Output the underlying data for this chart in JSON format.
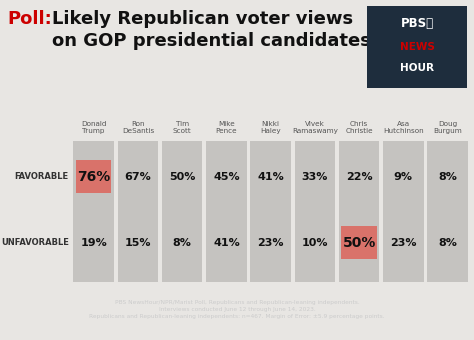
{
  "title_poll": "Poll:  ",
  "title_main": "Likely Republican voter views\non GOP presidential candidates",
  "candidates": [
    "Donald\nTrump",
    "Ron\nDeSantis",
    "Tim\nScott",
    "Mike\nPence",
    "Nikki\nHaley",
    "Vivek\nRamaswamy",
    "Chris\nChristie",
    "Asa\nHutchinson",
    "Doug\nBurgum"
  ],
  "favorable": [
    76,
    67,
    50,
    45,
    41,
    33,
    22,
    9,
    8
  ],
  "unfavorable": [
    19,
    15,
    8,
    41,
    23,
    10,
    50,
    23,
    8
  ],
  "highlight_favorable": [
    0
  ],
  "highlight_unfavorable": [
    6
  ],
  "bg_color": "#e8e6e3",
  "col_bg": "#c5c3c0",
  "highlight_color": "#d9726a",
  "text_color": "#111111",
  "label_favorable": "FAVORABLE",
  "label_unfavorable": "UNFAVORABLE",
  "footer_text": "PBS NewsHour/NPR/Marist Poll, Republicans and Republican-leaning independents.\nInterviews conducted June 12 through June 14, 2023.\nRepublicans and Republican-leaning independents: n=467. Margin of Error: ±5.9 percentage points.",
  "footer_bg": "#1e2d3d",
  "footer_text_color": "#cccccc",
  "pbs_box_bg": "#1e2d3d",
  "pbs_red": "#cc0000",
  "poll_red": "#cc0000",
  "pbs_text": "PBSⓄ\nNEWS\nHOUR"
}
